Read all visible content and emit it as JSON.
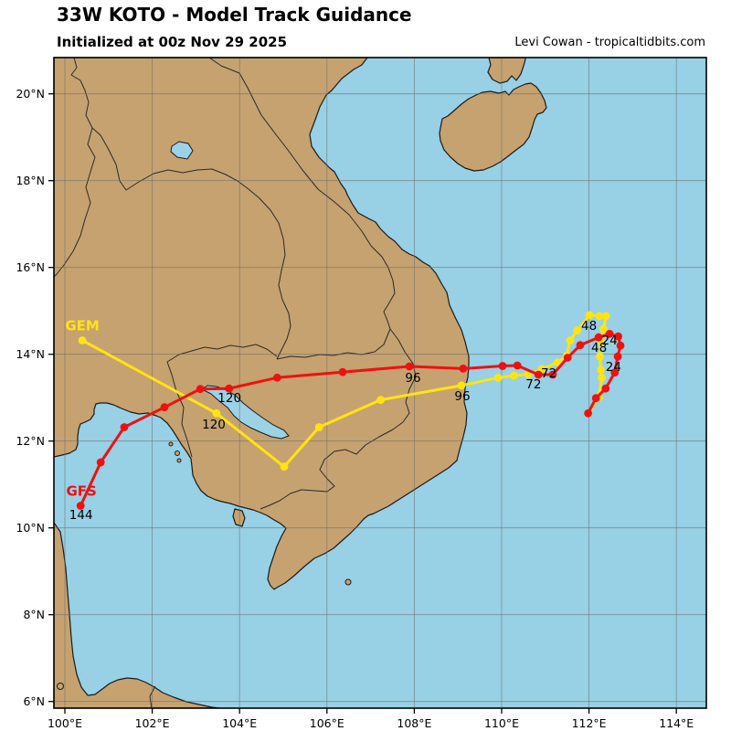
{
  "header": {
    "title": "33W KOTO - Model Track Guidance",
    "subtitle": "Initialized at 00z Nov 29 2025",
    "credit": "Levi Cowan - tropicaltidbits.com"
  },
  "colors": {
    "ocean": "#98d0e5",
    "land": "#c6a270",
    "lake": "#9cd2e6",
    "coast_stroke": "#1a1a1a",
    "border_stroke": "#2a2a2a",
    "grid": "#6b6b6b",
    "frame": "#000000",
    "gfs_red": "#ee1111",
    "gem_yellow": "#ffe412",
    "hour_label": "#000000"
  },
  "map": {
    "bounds": {
      "lon_min": 99.75,
      "lon_max": 114.69,
      "lat_min": 5.85,
      "lat_max": 20.83
    },
    "lon_ticks": [
      {
        "label": "100°E",
        "lon": 100
      },
      {
        "label": "102°E",
        "lon": 102
      },
      {
        "label": "104°E",
        "lon": 104
      },
      {
        "label": "106°E",
        "lon": 106
      },
      {
        "label": "108°E",
        "lon": 108
      },
      {
        "label": "110°E",
        "lon": 110
      },
      {
        "label": "112°E",
        "lon": 112
      },
      {
        "label": "114°E",
        "lon": 114
      }
    ],
    "lat_ticks": [
      {
        "label": "6°N",
        "lat": 6
      },
      {
        "label": "8°N",
        "lat": 8
      },
      {
        "label": "10°N",
        "lat": 10
      },
      {
        "label": "12°N",
        "lat": 12
      },
      {
        "label": "14°N",
        "lat": 14
      },
      {
        "label": "16°N",
        "lat": 16
      },
      {
        "label": "18°N",
        "lat": 18
      },
      {
        "label": "20°N",
        "lat": 20
      }
    ]
  },
  "chart_data": {
    "type": "track-map",
    "title": "33W KOTO - Model Track Guidance",
    "models": [
      {
        "name": "GEM",
        "color_key": "gem_yellow",
        "name_label": {
          "text": "GEM",
          "lon": 100.4,
          "lat": 14.66
        },
        "points": [
          [
            111.98,
            12.64
          ],
          [
            112.23,
            13.02
          ],
          [
            112.29,
            13.46
          ],
          [
            112.27,
            13.64
          ],
          [
            112.25,
            13.95
          ],
          [
            112.27,
            14.3
          ],
          [
            112.33,
            14.58
          ],
          [
            112.39,
            14.88
          ],
          [
            112.24,
            14.88
          ],
          [
            112.01,
            14.9
          ],
          [
            111.73,
            14.55
          ],
          [
            111.57,
            14.32
          ],
          [
            111.49,
            13.97
          ],
          [
            111.28,
            13.81
          ],
          [
            110.92,
            13.66
          ],
          [
            110.61,
            13.54
          ],
          [
            110.28,
            13.51
          ],
          [
            109.92,
            13.46
          ],
          [
            109.08,
            13.28
          ],
          [
            107.23,
            12.95
          ],
          [
            105.82,
            12.32
          ],
          [
            105.02,
            11.41
          ],
          [
            103.47,
            12.64
          ],
          [
            100.4,
            14.32
          ]
        ],
        "hour_labels": [
          {
            "text": "24",
            "lon": 112.47,
            "lat": 14.33
          },
          {
            "text": "48",
            "lon": 112.0,
            "lat": 14.67
          },
          {
            "text": "72",
            "lon": 110.73,
            "lat": 13.32
          },
          {
            "text": "96",
            "lon": 109.1,
            "lat": 13.05
          },
          {
            "text": "120",
            "lon": 103.41,
            "lat": 12.39
          }
        ]
      },
      {
        "name": "GFS",
        "color_key": "gfs_red",
        "name_label": {
          "text": "GFS",
          "lon": 100.38,
          "lat": 10.85
        },
        "points": [
          [
            111.98,
            12.64
          ],
          [
            112.16,
            12.99
          ],
          [
            112.38,
            13.21
          ],
          [
            112.59,
            13.58
          ],
          [
            112.66,
            13.95
          ],
          [
            112.72,
            14.2
          ],
          [
            112.67,
            14.41
          ],
          [
            112.47,
            14.47
          ],
          [
            112.22,
            14.39
          ],
          [
            111.8,
            14.21
          ],
          [
            111.51,
            13.92
          ],
          [
            111.17,
            13.53
          ],
          [
            110.84,
            13.53
          ],
          [
            110.36,
            13.74
          ],
          [
            110.02,
            13.73
          ],
          [
            109.12,
            13.67
          ],
          [
            107.89,
            13.72
          ],
          [
            106.36,
            13.59
          ],
          [
            104.86,
            13.46
          ],
          [
            103.76,
            13.21
          ],
          [
            103.1,
            13.2
          ],
          [
            102.28,
            12.78
          ],
          [
            101.36,
            12.32
          ],
          [
            100.82,
            11.51
          ],
          [
            100.36,
            10.51
          ]
        ],
        "hour_labels": [
          {
            "text": "24",
            "lon": 112.56,
            "lat": 13.72
          },
          {
            "text": "48",
            "lon": 112.23,
            "lat": 14.16
          },
          {
            "text": "72",
            "lon": 111.08,
            "lat": 13.57
          },
          {
            "text": "96",
            "lon": 107.97,
            "lat": 13.47
          },
          {
            "text": "120",
            "lon": 103.77,
            "lat": 13.0
          },
          {
            "text": "144",
            "lon": 100.37,
            "lat": 10.31
          }
        ]
      }
    ]
  }
}
